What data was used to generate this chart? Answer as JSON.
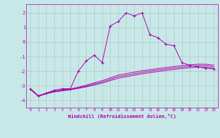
{
  "xlabel": "Windchill (Refroidissement éolien,°C)",
  "background_color": "#c8e8e8",
  "grid_color": "#b0c8c8",
  "line_color": "#aa00aa",
  "x_ticks": [
    0,
    1,
    2,
    3,
    4,
    5,
    6,
    7,
    8,
    9,
    10,
    11,
    12,
    13,
    14,
    15,
    16,
    17,
    18,
    19,
    20,
    21,
    22,
    23
  ],
  "ylim": [
    -4.5,
    2.6
  ],
  "xlim": [
    -0.5,
    23.5
  ],
  "yticks": [
    -4,
    -3,
    -2,
    -1,
    0,
    1,
    2
  ],
  "main_line": {
    "x": [
      0,
      1,
      2,
      3,
      4,
      5,
      6,
      7,
      8,
      9,
      10,
      11,
      12,
      13,
      14,
      15,
      16,
      17,
      18,
      19,
      20,
      21,
      22,
      23
    ],
    "y": [
      -3.2,
      -3.7,
      -3.5,
      -3.3,
      -3.2,
      -3.2,
      -2.0,
      -1.3,
      -0.9,
      -1.4,
      1.1,
      1.4,
      2.0,
      1.8,
      2.0,
      0.5,
      0.3,
      -0.15,
      -0.25,
      -1.4,
      -1.6,
      -1.7,
      -1.8,
      -1.85
    ]
  },
  "smooth_lines": [
    {
      "x": [
        0,
        1,
        2,
        3,
        4,
        5,
        6,
        7,
        8,
        9,
        10,
        11,
        12,
        13,
        14,
        15,
        16,
        17,
        18,
        19,
        20,
        21,
        22,
        23
      ],
      "y": [
        -3.25,
        -3.72,
        -3.55,
        -3.42,
        -3.35,
        -3.28,
        -3.18,
        -3.08,
        -2.95,
        -2.82,
        -2.65,
        -2.48,
        -2.38,
        -2.28,
        -2.18,
        -2.1,
        -2.02,
        -1.95,
        -1.88,
        -1.82,
        -1.76,
        -1.72,
        -1.72,
        -1.78
      ]
    },
    {
      "x": [
        0,
        1,
        2,
        3,
        4,
        5,
        6,
        7,
        8,
        9,
        10,
        11,
        12,
        13,
        14,
        15,
        16,
        17,
        18,
        19,
        20,
        21,
        22,
        23
      ],
      "y": [
        -3.22,
        -3.7,
        -3.52,
        -3.39,
        -3.31,
        -3.25,
        -3.14,
        -3.02,
        -2.88,
        -2.74,
        -2.56,
        -2.38,
        -2.28,
        -2.18,
        -2.08,
        -2.0,
        -1.92,
        -1.85,
        -1.78,
        -1.72,
        -1.66,
        -1.62,
        -1.62,
        -1.68
      ]
    },
    {
      "x": [
        0,
        1,
        2,
        3,
        4,
        5,
        6,
        7,
        8,
        9,
        10,
        11,
        12,
        13,
        14,
        15,
        16,
        17,
        18,
        19,
        20,
        21,
        22,
        23
      ],
      "y": [
        -3.2,
        -3.68,
        -3.5,
        -3.36,
        -3.28,
        -3.22,
        -3.1,
        -2.96,
        -2.8,
        -2.65,
        -2.46,
        -2.27,
        -2.17,
        -2.07,
        -1.97,
        -1.9,
        -1.82,
        -1.75,
        -1.68,
        -1.62,
        -1.56,
        -1.52,
        -1.52,
        -1.58
      ]
    }
  ]
}
